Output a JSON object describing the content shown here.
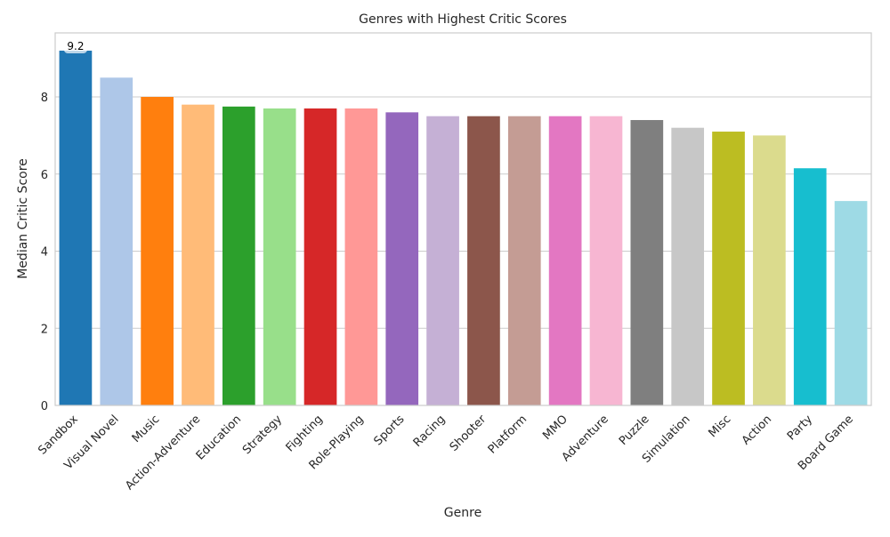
{
  "chart_data": {
    "type": "bar",
    "title": "Genres with Highest Critic Scores",
    "xlabel": "Genre",
    "ylabel": "Median Critic Score",
    "ylim": [
      0,
      9.66
    ],
    "yticks": [
      0,
      2,
      4,
      6,
      8
    ],
    "grid": "horizontal",
    "legend": "none",
    "categories": [
      "Sandbox",
      "Visual Novel",
      "Music",
      "Action-Adventure",
      "Education",
      "Strategy",
      "Fighting",
      "Role-Playing",
      "Sports",
      "Racing",
      "Shooter",
      "Platform",
      "MMO",
      "Adventure",
      "Puzzle",
      "Simulation",
      "Misc",
      "Action",
      "Party",
      "Board Game"
    ],
    "values": [
      9.2,
      8.5,
      8.0,
      7.8,
      7.75,
      7.7,
      7.7,
      7.7,
      7.6,
      7.5,
      7.5,
      7.5,
      7.5,
      7.5,
      7.4,
      7.2,
      7.1,
      7.0,
      6.15,
      5.3
    ],
    "colors": [
      "#1f77b4",
      "#aec7e8",
      "#ff7f0e",
      "#ffbb78",
      "#2ca02c",
      "#98df8a",
      "#d62728",
      "#ff9896",
      "#9467bd",
      "#c5b0d5",
      "#8c564b",
      "#c49c94",
      "#e377c2",
      "#f7b6d2",
      "#7f7f7f",
      "#c7c7c7",
      "#bcbd22",
      "#dbdb8d",
      "#17becf",
      "#9edae5"
    ],
    "annotations": [
      {
        "category": "Sandbox",
        "text": "9.2"
      }
    ]
  }
}
